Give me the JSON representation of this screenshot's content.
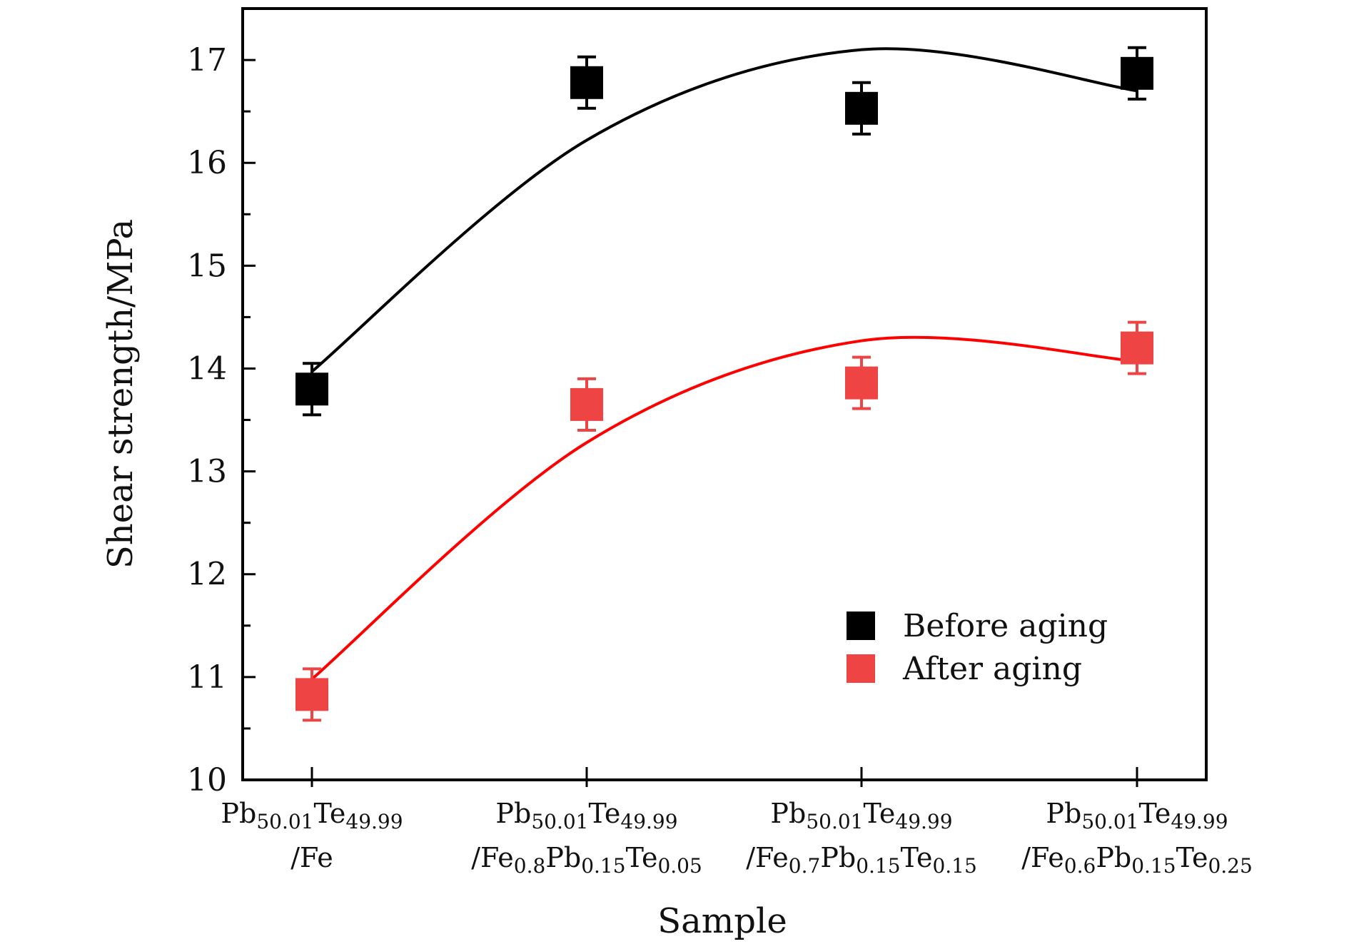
{
  "chart_data": {
    "type": "scatter",
    "title": "",
    "xlabel": "Sample",
    "ylabel": "Shear strength/MPa",
    "ylim": [
      10,
      17.5
    ],
    "yticks": [
      10,
      11,
      12,
      13,
      14,
      15,
      16,
      17
    ],
    "grid": false,
    "legend_position": "bottom-right",
    "categories": [
      {
        "line1": [
          {
            "t": "Pb",
            "s": false
          },
          {
            "t": "50.01",
            "s": true
          },
          {
            "t": "Te",
            "s": false
          },
          {
            "t": "49.99",
            "s": true
          }
        ],
        "line2": [
          {
            "t": "/Fe",
            "s": false
          }
        ]
      },
      {
        "line1": [
          {
            "t": "Pb",
            "s": false
          },
          {
            "t": "50.01",
            "s": true
          },
          {
            "t": "Te",
            "s": false
          },
          {
            "t": "49.99",
            "s": true
          }
        ],
        "line2": [
          {
            "t": "/Fe",
            "s": false
          },
          {
            "t": "0.8",
            "s": true
          },
          {
            "t": "Pb",
            "s": false
          },
          {
            "t": "0.15",
            "s": true
          },
          {
            "t": "Te",
            "s": false
          },
          {
            "t": "0.05",
            "s": true
          }
        ]
      },
      {
        "line1": [
          {
            "t": "Pb",
            "s": false
          },
          {
            "t": "50.01",
            "s": true
          },
          {
            "t": "Te",
            "s": false
          },
          {
            "t": "49.99",
            "s": true
          }
        ],
        "line2": [
          {
            "t": "/Fe",
            "s": false
          },
          {
            "t": "0.7",
            "s": true
          },
          {
            "t": "Pb",
            "s": false
          },
          {
            "t": "0.15",
            "s": true
          },
          {
            "t": "Te",
            "s": false
          },
          {
            "t": "0.15",
            "s": true
          }
        ]
      },
      {
        "line1": [
          {
            "t": "Pb",
            "s": false
          },
          {
            "t": "50.01",
            "s": true
          },
          {
            "t": "Te",
            "s": false
          },
          {
            "t": "49.99",
            "s": true
          }
        ],
        "line2": [
          {
            "t": "/Fe",
            "s": false
          },
          {
            "t": "0.6",
            "s": true
          },
          {
            "t": "Pb",
            "s": false
          },
          {
            "t": "0.15",
            "s": true
          },
          {
            "t": "Te",
            "s": false
          },
          {
            "t": "0.25",
            "s": true
          }
        ]
      }
    ],
    "series": [
      {
        "name": "Before aging",
        "color": "#000000",
        "marker": "square",
        "values": [
          13.8,
          16.78,
          16.53,
          16.87
        ],
        "errors": [
          0.25,
          0.25,
          0.25,
          0.25
        ],
        "fit_values": [
          13.97,
          16.22,
          17.1,
          16.7
        ]
      },
      {
        "name": "After aging",
        "color": "#ee4444",
        "fit_color": "#ff0000",
        "marker": "square",
        "values": [
          10.83,
          13.65,
          13.86,
          14.2
        ],
        "errors": [
          0.25,
          0.25,
          0.25,
          0.25
        ],
        "fit_values": [
          10.98,
          13.28,
          14.27,
          14.07
        ]
      }
    ]
  }
}
